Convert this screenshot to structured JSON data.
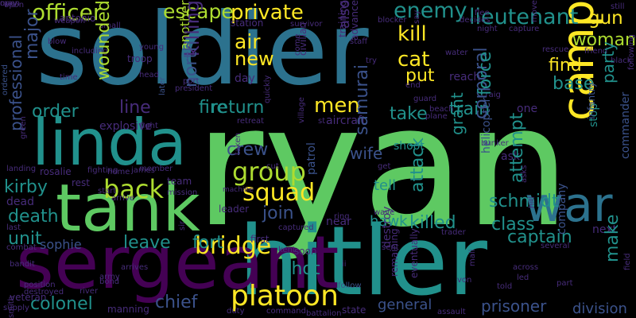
{
  "palette": {
    "background": "#000000",
    "dark_purple": "#440154",
    "purple": "#472c7a",
    "indigo": "#3b528b",
    "blue": "#2c728e",
    "teal": "#21918c",
    "green": "#28ae80",
    "bright_green": "#5ec962",
    "lime": "#addc30",
    "yellow": "#fde725"
  },
  "words": [
    {
      "text": "ryan",
      "color": "#5ec962",
      "rotate": false
    },
    {
      "text": "soldier",
      "color": "#2c728e",
      "rotate": false
    },
    {
      "text": "hitler",
      "color": "#21918c",
      "rotate": false
    },
    {
      "text": "sergeant",
      "color": "#440154",
      "rotate": false
    },
    {
      "text": "tank",
      "color": "#5ec962",
      "rotate": false
    },
    {
      "text": "linda",
      "color": "#21918c",
      "rotate": false
    },
    {
      "text": "war",
      "color": "#2c728e",
      "rotate": false
    },
    {
      "text": "camp",
      "color": "#fde725",
      "rotate": true
    },
    {
      "text": "platoon",
      "color": "#fde725",
      "rotate": false
    },
    {
      "text": "squad",
      "color": "#fde725",
      "rotate": false
    },
    {
      "text": "group",
      "color": "#addc30",
      "rotate": false
    },
    {
      "text": "bridge",
      "color": "#fde725",
      "rotate": false
    },
    {
      "text": "back",
      "color": "#addc30",
      "rotate": false
    },
    {
      "text": "officer",
      "color": "#addc30",
      "rotate": false
    },
    {
      "text": "lieutenant",
      "color": "#21918c",
      "rotate": false
    },
    {
      "text": "enemy",
      "color": "#21918c",
      "rotate": false
    },
    {
      "text": "private",
      "color": "#fde725",
      "rotate": false
    },
    {
      "text": "escape",
      "color": "#addc30",
      "rotate": false
    },
    {
      "text": "kill",
      "color": "#fde725",
      "rotate": false
    },
    {
      "text": "cat",
      "color": "#fde725",
      "rotate": false
    },
    {
      "text": "air",
      "color": "#fde725",
      "rotate": false
    },
    {
      "text": "new",
      "color": "#fde725",
      "rotate": false
    },
    {
      "text": "woman",
      "color": "#addc30",
      "rotate": false
    },
    {
      "text": "gun",
      "color": "#fde725",
      "rotate": false
    },
    {
      "text": "find",
      "color": "#fde725",
      "rotate": false
    },
    {
      "text": "base",
      "color": "#21918c",
      "rotate": false
    },
    {
      "text": "men",
      "color": "#fde725",
      "rotate": false
    },
    {
      "text": "put",
      "color": "#fde725",
      "rotate": false
    },
    {
      "text": "train",
      "color": "#21918c",
      "rotate": false
    },
    {
      "text": "take",
      "color": "#21918c",
      "rotate": false
    },
    {
      "text": "order",
      "color": "#21918c",
      "rotate": false
    },
    {
      "text": "return",
      "color": "#21918c",
      "rotate": false
    },
    {
      "text": "fire",
      "color": "#21918c",
      "rotate": false
    },
    {
      "text": "line",
      "color": "#472c7a",
      "rotate": false
    },
    {
      "text": "crew",
      "color": "#3b528b",
      "rotate": false
    },
    {
      "text": "schmidt",
      "color": "#21918c",
      "rotate": false
    },
    {
      "text": "kirby",
      "color": "#21918c",
      "rotate": false
    },
    {
      "text": "death",
      "color": "#21918c",
      "rotate": false
    },
    {
      "text": "unit",
      "color": "#21918c",
      "rotate": false
    },
    {
      "text": "leave",
      "color": "#21918c",
      "rotate": false
    },
    {
      "text": "fort",
      "color": "#21918c",
      "rotate": false
    },
    {
      "text": "join",
      "color": "#3b528b",
      "rotate": false
    },
    {
      "text": "killed",
      "color": "#21918c",
      "rotate": false
    },
    {
      "text": "class",
      "color": "#21918c",
      "rotate": false
    },
    {
      "text": "captain",
      "color": "#21918c",
      "rotate": false
    },
    {
      "text": "shot",
      "color": "#21918c",
      "rotate": false
    },
    {
      "text": "colonel",
      "color": "#21918c",
      "rotate": false
    },
    {
      "text": "chief",
      "color": "#3b528b",
      "rotate": false
    },
    {
      "text": "wife",
      "color": "#3b528b",
      "rotate": false
    },
    {
      "text": "tell",
      "color": "#21918c",
      "rotate": false
    },
    {
      "text": "shoot",
      "color": "#21918c",
      "rotate": false
    },
    {
      "text": "hawk",
      "color": "#21918c",
      "rotate": false
    },
    {
      "text": "prisoner",
      "color": "#3b528b",
      "rotate": false
    },
    {
      "text": "general",
      "color": "#3b528b",
      "rotate": false
    },
    {
      "text": "division",
      "color": "#3b528b",
      "rotate": false
    },
    {
      "text": "sophie",
      "color": "#3b528b",
      "rotate": false
    },
    {
      "text": "rosalie",
      "color": "#472c7a",
      "rotate": false
    },
    {
      "text": "explosive",
      "color": "#472c7a",
      "rotate": false
    },
    {
      "text": "aircraft",
      "color": "#472c7a",
      "rotate": false
    },
    {
      "text": "antonio",
      "color": "#472c7a",
      "rotate": false
    },
    {
      "text": "station",
      "color": "#472c7a",
      "rotate": false
    },
    {
      "text": "troop",
      "color": "#472c7a",
      "rotate": false
    },
    {
      "text": "manning",
      "color": "#472c7a",
      "rotate": false
    },
    {
      "text": "veteran",
      "color": "#472c7a",
      "rotate": false
    },
    {
      "text": "state",
      "color": "#472c7a",
      "rotate": false
    },
    {
      "text": "reach",
      "color": "#472c7a",
      "rotate": false
    },
    {
      "text": "near",
      "color": "#472c7a",
      "rotate": false
    },
    {
      "text": "one",
      "color": "#472c7a",
      "rotate": false
    },
    {
      "text": "next",
      "color": "#472c7a",
      "rotate": false
    },
    {
      "text": "soon",
      "color": "#472c7a",
      "rotate": false
    },
    {
      "text": "first",
      "color": "#472c7a",
      "rotate": false
    },
    {
      "text": "day",
      "color": "#472c7a",
      "rotate": false
    },
    {
      "text": "team",
      "color": "#472c7a",
      "rotate": false
    },
    {
      "text": "dead",
      "color": "#472c7a",
      "rotate": false
    },
    {
      "text": "rest",
      "color": "#472c7a",
      "rotate": false
    },
    {
      "text": "fight",
      "color": "#472c7a",
      "rotate": false
    },
    {
      "text": "member",
      "color": "#472c7a",
      "rotate": false
    },
    {
      "text": "machine",
      "color": "#472c7a",
      "rotate": false
    },
    {
      "text": "leader",
      "color": "#472c7a",
      "rotate": false
    },
    {
      "text": "patrol",
      "color": "#3b528b",
      "rotate": true
    },
    {
      "text": "survivor",
      "color": "#472c7a",
      "rotate": false
    },
    {
      "text": "blocker",
      "color": "#472c7a",
      "rotate": false
    },
    {
      "text": "flee",
      "color": "#472c7a",
      "rotate": false
    },
    {
      "text": "still",
      "color": "#472c7a",
      "rotate": false
    },
    {
      "text": "decides",
      "color": "#472c7a",
      "rotate": false
    },
    {
      "text": "night",
      "color": "#472c7a",
      "rotate": false
    },
    {
      "text": "capture",
      "color": "#472c7a",
      "rotate": false
    },
    {
      "text": "rescue",
      "color": "#472c7a",
      "rotate": false
    },
    {
      "text": "friend",
      "color": "#472c7a",
      "rotate": false
    },
    {
      "text": "black",
      "color": "#472c7a",
      "rotate": false
    },
    {
      "text": "young",
      "color": "#472c7a",
      "rotate": false
    },
    {
      "text": "head",
      "color": "#472c7a",
      "rotate": false
    },
    {
      "text": "time",
      "color": "#472c7a",
      "rotate": false
    },
    {
      "text": "position",
      "color": "#472c7a",
      "rotate": false
    },
    {
      "text": "bandit",
      "color": "#472c7a",
      "rotate": false
    },
    {
      "text": "destroyed",
      "color": "#472c7a",
      "rotate": false
    },
    {
      "text": "landing",
      "color": "#472c7a",
      "rotate": false
    },
    {
      "text": "fighting",
      "color": "#472c7a",
      "rotate": false
    },
    {
      "text": "home",
      "color": "#472c7a",
      "rotate": false
    },
    {
      "text": "james",
      "color": "#472c7a",
      "rotate": false
    },
    {
      "text": "mission",
      "color": "#472c7a",
      "rotate": false
    },
    {
      "text": "arrive",
      "color": "#472c7a",
      "rotate": false
    },
    {
      "text": "start",
      "color": "#472c7a",
      "rotate": false
    },
    {
      "text": "last",
      "color": "#472c7a",
      "rotate": false
    },
    {
      "text": "combat",
      "color": "#472c7a",
      "rotate": false
    },
    {
      "text": "arrives",
      "color": "#472c7a",
      "rotate": false
    },
    {
      "text": "army",
      "color": "#472c7a",
      "rotate": false
    },
    {
      "text": "river",
      "color": "#472c7a",
      "rotate": false
    },
    {
      "text": "supply",
      "color": "#472c7a",
      "rotate": false
    },
    {
      "text": "duty",
      "color": "#472c7a",
      "rotate": false
    },
    {
      "text": "command",
      "color": "#472c7a",
      "rotate": false
    },
    {
      "text": "battalion",
      "color": "#472c7a",
      "rotate": false
    },
    {
      "text": "assault",
      "color": "#472c7a",
      "rotate": false
    },
    {
      "text": "several",
      "color": "#472c7a",
      "rotate": false
    },
    {
      "text": "across",
      "color": "#472c7a",
      "rotate": false
    },
    {
      "text": "part",
      "color": "#472c7a",
      "rotate": false
    },
    {
      "text": "led",
      "color": "#472c7a",
      "rotate": false
    },
    {
      "text": "von",
      "color": "#472c7a",
      "rotate": false
    },
    {
      "text": "told",
      "color": "#472c7a",
      "rotate": false
    },
    {
      "text": "captured",
      "color": "#472c7a",
      "rotate": false
    },
    {
      "text": "sent",
      "color": "#472c7a",
      "rotate": false
    },
    {
      "text": "trader",
      "color": "#472c7a",
      "rotate": false
    },
    {
      "text": "wave",
      "color": "#472c7a",
      "rotate": false
    },
    {
      "text": "ring",
      "color": "#472c7a",
      "rotate": false
    },
    {
      "text": "get",
      "color": "#472c7a",
      "rotate": false
    },
    {
      "text": "bunker",
      "color": "#472c7a",
      "rotate": false
    },
    {
      "text": "cut",
      "color": "#472c7a",
      "rotate": false
    },
    {
      "text": "retreat",
      "color": "#472c7a",
      "rotate": false
    },
    {
      "text": "guard",
      "color": "#472c7a",
      "rotate": false
    },
    {
      "text": "plane",
      "color": "#472c7a",
      "rotate": false
    },
    {
      "text": "beach",
      "color": "#472c7a",
      "rotate": false
    },
    {
      "text": "end",
      "color": "#472c7a",
      "rotate": false
    },
    {
      "text": "try",
      "color": "#472c7a",
      "rotate": false
    },
    {
      "text": "staff",
      "color": "#472c7a",
      "rotate": false
    },
    {
      "text": "upon",
      "color": "#472c7a",
      "rotate": false
    },
    {
      "text": "weapon",
      "color": "#472c7a",
      "rotate": false
    },
    {
      "text": "including",
      "color": "#472c7a",
      "rotate": false
    },
    {
      "text": "small",
      "color": "#472c7a",
      "rotate": false
    },
    {
      "text": "blow",
      "color": "#472c7a",
      "rotate": false
    },
    {
      "text": "president",
      "color": "#472c7a",
      "rotate": false
    },
    {
      "text": "port",
      "color": "#472c7a",
      "rotate": false
    },
    {
      "text": "craig",
      "color": "#472c7a",
      "rotate": false
    },
    {
      "text": "water",
      "color": "#472c7a",
      "rotate": false
    },
    {
      "text": "st",
      "color": "#472c7a",
      "rotate": false
    },
    {
      "text": "kent",
      "color": "#472c7a",
      "rotate": false
    },
    {
      "text": "ii",
      "color": "#472c7a",
      "rotate": false
    },
    {
      "text": "ask",
      "color": "#472c7a",
      "rotate": false
    },
    {
      "text": "ordered",
      "color": "#3b528b",
      "rotate": true
    },
    {
      "text": "professional",
      "color": "#3b528b",
      "rotate": true
    },
    {
      "text": "major",
      "color": "#3b528b",
      "rotate": true
    },
    {
      "text": "wounded",
      "color": "#addc30",
      "rotate": true
    },
    {
      "text": "another",
      "color": "#addc30",
      "rotate": true
    },
    {
      "text": "killing",
      "color": "#472c7a",
      "rotate": true
    },
    {
      "text": "north",
      "color": "#3b528b",
      "rotate": true
    },
    {
      "text": "later",
      "color": "#3b528b",
      "rotate": true
    },
    {
      "text": "also",
      "color": "#472c7a",
      "rotate": true
    },
    {
      "text": "samurai",
      "color": "#3b528b",
      "rotate": true
    },
    {
      "text": "attack",
      "color": "#21918c",
      "rotate": true
    },
    {
      "text": "grant",
      "color": "#21918c",
      "rotate": true
    },
    {
      "text": "corporal",
      "color": "#3b528b",
      "rotate": true
    },
    {
      "text": "force",
      "color": "#21918c",
      "rotate": true
    },
    {
      "text": "attempt",
      "color": "#21918c",
      "rotate": true
    },
    {
      "text": "party",
      "color": "#21918c",
      "rotate": true
    },
    {
      "text": "make",
      "color": "#21918c",
      "rotate": true
    },
    {
      "text": "company",
      "color": "#3b528b",
      "rotate": true
    },
    {
      "text": "stop",
      "color": "#21918c",
      "rotate": true
    },
    {
      "text": "commander",
      "color": "#3b528b",
      "rotate": true
    },
    {
      "text": "helicopter",
      "color": "#3b528b",
      "rotate": true
    },
    {
      "text": "infantry",
      "color": "#3b528b",
      "rotate": true
    },
    {
      "text": "civilian",
      "color": "#472c7a",
      "rotate": true
    },
    {
      "text": "training",
      "color": "#472c7a",
      "rotate": true
    },
    {
      "text": "advance",
      "color": "#472c7a",
      "rotate": true
    },
    {
      "text": "destroy",
      "color": "#472c7a",
      "rotate": true
    },
    {
      "text": "remaining",
      "color": "#472c7a",
      "rotate": true
    },
    {
      "text": "eventually",
      "color": "#472c7a",
      "rotate": true
    },
    {
      "text": "quickly",
      "color": "#472c7a",
      "rotate": true
    },
    {
      "text": "come",
      "color": "#472c7a",
      "rotate": true
    },
    {
      "text": "village",
      "color": "#472c7a",
      "rotate": true
    },
    {
      "text": "smith",
      "color": "#472c7a",
      "rotate": true
    },
    {
      "text": "green",
      "color": "#472c7a",
      "rotate": true
    },
    {
      "text": "field",
      "color": "#472c7a",
      "rotate": true
    },
    {
      "text": "say",
      "color": "#472c7a",
      "rotate": true
    },
    {
      "text": "move",
      "color": "#472c7a",
      "rotate": true
    },
    {
      "text": "taken",
      "color": "#472c7a",
      "rotate": true
    },
    {
      "text": "following",
      "color": "#472c7a",
      "rotate": true
    },
    {
      "text": "follow",
      "color": "#3b528b",
      "rotate": false
    },
    {
      "text": "mali",
      "color": "#472c7a",
      "rotate": true
    },
    {
      "text": "asks",
      "color": "#472c7a",
      "rotate": true
    },
    {
      "text": "hill",
      "color": "#472c7a",
      "rotate": true
    },
    {
      "text": "sir",
      "color": "#472c7a",
      "rotate": true
    },
    {
      "text": "bond",
      "color": "#472c7a",
      "rotate": false
    },
    {
      "text": "open",
      "color": "#472c7a",
      "rotate": false
    },
    {
      "text": "may",
      "color": "#472c7a",
      "rotate": false
    }
  ]
}
